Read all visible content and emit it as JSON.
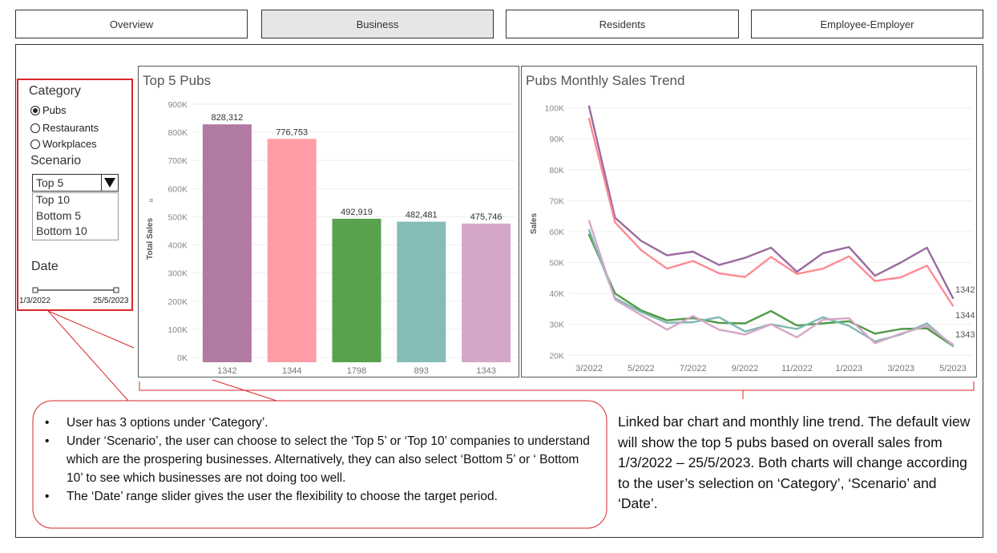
{
  "tabs": [
    {
      "label": "Overview",
      "active": false
    },
    {
      "label": "Business",
      "active": true
    },
    {
      "label": "Residents",
      "active": false
    },
    {
      "label": "Employee-Employer",
      "active": false
    }
  ],
  "filters": {
    "category_title": "Category",
    "category_options": [
      "Pubs",
      "Restaurants",
      "Workplaces"
    ],
    "category_selected": "Pubs",
    "scenario_title": "Scenario",
    "scenario_selected": "Top 5",
    "scenario_options": [
      "Top 10",
      "Bottom 5",
      "Bottom 10"
    ],
    "date_title": "Date",
    "date_start": "1/3/2022",
    "date_end": "25/5/2023"
  },
  "bar_panel": {
    "title": "Top 5 Pubs"
  },
  "line_panel": {
    "title": "Pubs Monthly Sales Trend"
  },
  "chart_data": [
    {
      "type": "bar",
      "title": "Top 5 Pubs",
      "ylabel": "Total Sales",
      "xlabel": "",
      "categories": [
        "1342",
        "1344",
        "1798",
        "893",
        "1343"
      ],
      "values": [
        828312,
        776753,
        492919,
        482481,
        475746
      ],
      "data_labels": [
        "828,312",
        "776,753",
        "492,919",
        "482,481",
        "475,746"
      ],
      "colors": [
        "#b07aa1",
        "#ff9da7",
        "#59a14f",
        "#86bcb6",
        "#d4a6c8"
      ],
      "ylim": [
        0,
        900000
      ],
      "yticks": [
        "0K",
        "100K",
        "200K",
        "300K",
        "400K",
        "500K",
        "600K",
        "700K",
        "800K",
        "900K"
      ],
      "grid": true
    },
    {
      "type": "line",
      "title": "Pubs Monthly Sales Trend",
      "ylabel": "Sales",
      "xlabel": "",
      "x": [
        "3/2022",
        "4/2022",
        "5/2022",
        "6/2022",
        "7/2022",
        "8/2022",
        "9/2022",
        "10/2022",
        "11/2022",
        "12/2022",
        "1/2023",
        "2/2023",
        "3/2023",
        "4/2023",
        "5/2023"
      ],
      "xticks": [
        "3/2022",
        "5/2022",
        "7/2022",
        "9/2022",
        "11/2022",
        "1/2023",
        "3/2023",
        "5/2023"
      ],
      "yticks": [
        "20K",
        "30K",
        "40K",
        "50K",
        "60K",
        "70K",
        "80K",
        "90K",
        "100K"
      ],
      "ylim": [
        18000,
        103000
      ],
      "grid": true,
      "series": [
        {
          "name": "1342",
          "color": "#9a6a9e",
          "values": [
            100500,
            64500,
            57000,
            52300,
            53500,
            49200,
            51500,
            54800,
            47000,
            53000,
            55000,
            45700,
            50000,
            54800,
            38500
          ],
          "end_label": "1342"
        },
        {
          "name": "1344",
          "color": "#ff8a95",
          "values": [
            96500,
            63000,
            54000,
            48000,
            50500,
            46500,
            45300,
            51800,
            46300,
            48000,
            52000,
            44000,
            45200,
            49000,
            36000
          ],
          "end_label": "1344"
        },
        {
          "name": "1798",
          "color": "#4f9a45",
          "values": [
            59000,
            40000,
            34500,
            31300,
            32000,
            30500,
            30300,
            34300,
            29600,
            30300,
            31000,
            27000,
            28500,
            28700,
            23000
          ],
          "end_label": ""
        },
        {
          "name": "893",
          "color": "#7fb8b2",
          "values": [
            60500,
            38500,
            34000,
            30500,
            30700,
            32300,
            27700,
            30000,
            28500,
            32300,
            29500,
            24500,
            26700,
            30300,
            23000
          ],
          "end_label": "1343"
        },
        {
          "name": "1343",
          "color": "#d4a6c8",
          "values": [
            63500,
            38000,
            33000,
            28300,
            32700,
            28300,
            26700,
            30000,
            25800,
            31500,
            32000,
            23900,
            27000,
            29500,
            23500
          ],
          "end_label": ""
        }
      ]
    }
  ],
  "callout": {
    "bullets": [
      "User has 3 options under ‘Category’.",
      "Under ‘Scenario’, the user can choose to select the ‘Top 5’ or ‘Top 10’ companies to understand which are the prospering businesses. Alternatively, they can also select ‘Bottom 5’ or ‘ Bottom 10’ to see which businesses are not doing too well.",
      "The ‘Date’ range slider gives the user the flexibility to choose the target period."
    ]
  },
  "description": "Linked bar chart and monthly line trend. The default view will show the top 5 pubs based on overall sales from 1/3/2022 – 25/5/2023. Both charts will change according to the user’s selection on ‘Category’, ‘Scenario’ and ‘Date’.",
  "colors": {
    "annotation_red": "#d9262b",
    "tab_active": "#e6e6e6"
  }
}
